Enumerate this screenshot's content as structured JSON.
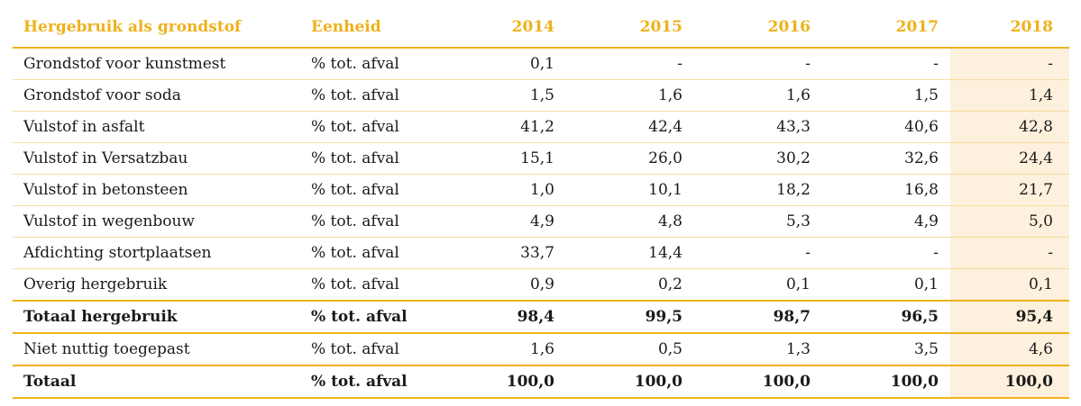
{
  "table": {
    "headers": [
      "Hergebruik als grondstof",
      "Eenheid",
      "2014",
      "2015",
      "2016",
      "2017",
      "2018"
    ],
    "highlight_color": "#fdf0dc",
    "accent_color": "#f0b31c",
    "rows": [
      {
        "label": "Grondstof voor kunstmest",
        "unit": "% tot. afval",
        "values": [
          "0,1",
          "-",
          "-",
          "-",
          "-"
        ],
        "bold": false
      },
      {
        "label": "Grondstof voor soda",
        "unit": "% tot. afval",
        "values": [
          "1,5",
          "1,6",
          "1,6",
          "1,5",
          "1,4"
        ],
        "bold": false
      },
      {
        "label": "Vulstof in asfalt",
        "unit": "% tot. afval",
        "values": [
          "41,2",
          "42,4",
          "43,3",
          "40,6",
          "42,8"
        ],
        "bold": false
      },
      {
        "label": "Vulstof in Versatzbau",
        "unit": "% tot. afval",
        "values": [
          "15,1",
          "26,0",
          "30,2",
          "32,6",
          "24,4"
        ],
        "bold": false
      },
      {
        "label": "Vulstof in betonsteen",
        "unit": "% tot. afval",
        "values": [
          "1,0",
          "10,1",
          "18,2",
          "16,8",
          "21,7"
        ],
        "bold": false
      },
      {
        "label": "Vulstof in wegenbouw",
        "unit": "% tot. afval",
        "values": [
          "4,9",
          "4,8",
          "5,3",
          "4,9",
          "5,0"
        ],
        "bold": false
      },
      {
        "label": "Afdichting stortplaatsen",
        "unit": "% tot. afval",
        "values": [
          "33,7",
          "14,4",
          "-",
          "-",
          "-"
        ],
        "bold": false
      },
      {
        "label": "Overig hergebruik",
        "unit": "% tot. afval",
        "values": [
          "0,9",
          "0,2",
          "0,1",
          "0,1",
          "0,1"
        ],
        "bold": false
      },
      {
        "label": "Totaal hergebruik",
        "unit": "% tot. afval",
        "values": [
          "98,4",
          "99,5",
          "98,7",
          "96,5",
          "95,4"
        ],
        "bold": true
      },
      {
        "label": "Niet nuttig toegepast",
        "unit": "% tot. afval",
        "values": [
          "1,6",
          "0,5",
          "1,3",
          "3,5",
          "4,6"
        ],
        "bold": false
      },
      {
        "label": "Totaal",
        "unit": "% tot. afval",
        "values": [
          "100,0",
          "100,0",
          "100,0",
          "100,0",
          "100,0"
        ],
        "bold": true
      }
    ]
  }
}
